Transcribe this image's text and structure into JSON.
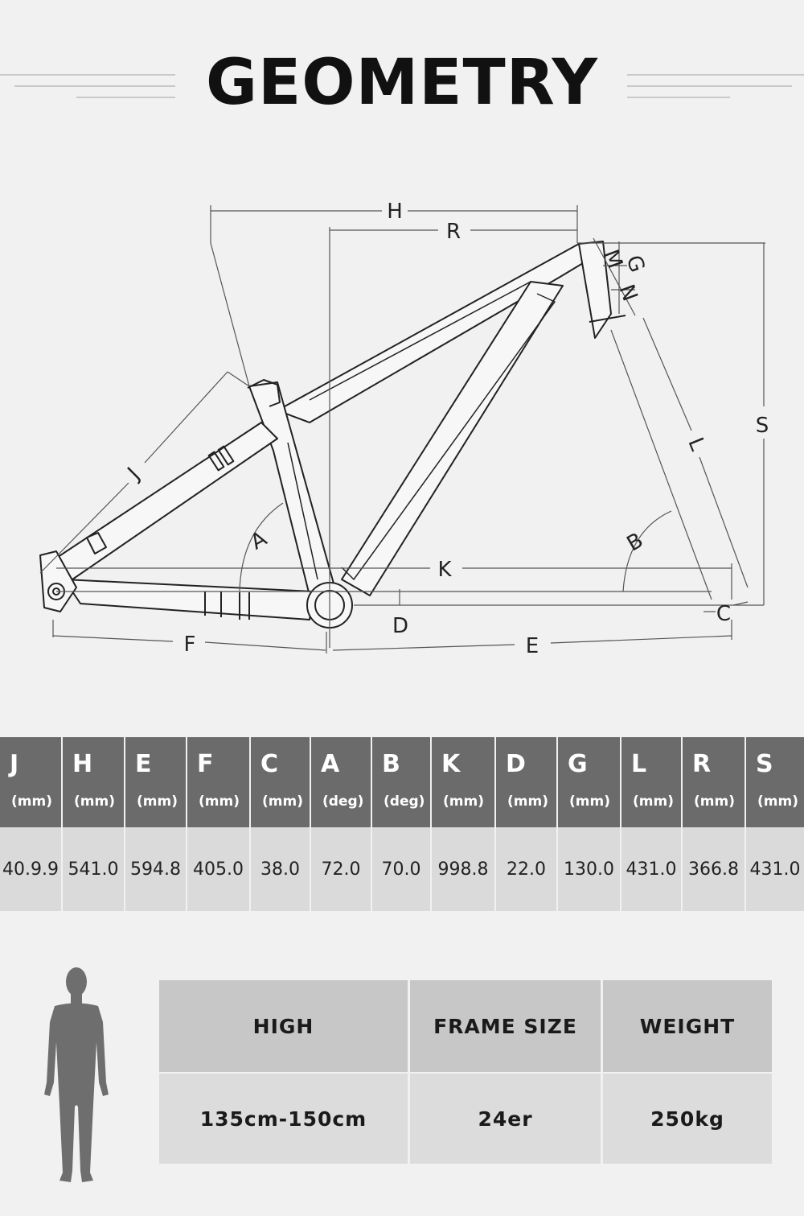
{
  "title": "GEOMETRY",
  "diagram": {
    "labels": {
      "H": "H",
      "R": "R",
      "M": "M",
      "G": "G",
      "N": "N",
      "S": "S",
      "J": "J",
      "L": "L",
      "A": "A",
      "B": "B",
      "K": "K",
      "D": "D",
      "C": "C",
      "F": "F",
      "E": "E"
    }
  },
  "geometry_table": {
    "columns": [
      {
        "letter": "J",
        "unit": "(mm)",
        "value": "40.9.9"
      },
      {
        "letter": "H",
        "unit": "(mm)",
        "value": "541.0"
      },
      {
        "letter": "E",
        "unit": "(mm)",
        "value": "594.8"
      },
      {
        "letter": "F",
        "unit": "(mm)",
        "value": "405.0"
      },
      {
        "letter": "C",
        "unit": "(mm)",
        "value": "38.0"
      },
      {
        "letter": "A",
        "unit": "(deg)",
        "value": "72.0"
      },
      {
        "letter": "B",
        "unit": "(deg)",
        "value": "70.0"
      },
      {
        "letter": "K",
        "unit": "(mm)",
        "value": "998.8"
      },
      {
        "letter": "D",
        "unit": "(mm)",
        "value": "22.0"
      },
      {
        "letter": "G",
        "unit": "(mm)",
        "value": "130.0"
      },
      {
        "letter": "L",
        "unit": "(mm)",
        "value": "431.0"
      },
      {
        "letter": "R",
        "unit": "(mm)",
        "value": "366.8"
      },
      {
        "letter": "S",
        "unit": "(mm)",
        "value": "431.0"
      }
    ]
  },
  "size_table": {
    "headers": {
      "high": "HIGH",
      "frame_size": "FRAME SIZE",
      "weight": "WEIGHT"
    },
    "values": {
      "high": "135cm-150cm",
      "frame_size": "24er",
      "weight": "250kg"
    }
  },
  "colors": {
    "header_bg": "#6b6b6b",
    "row_bg": "#dadada",
    "size_header_bg": "#c7c7c7",
    "size_row_bg": "#dcdcdc",
    "figure": "#6e6e6e"
  },
  "icons": {
    "person": "person-silhouette-icon"
  }
}
